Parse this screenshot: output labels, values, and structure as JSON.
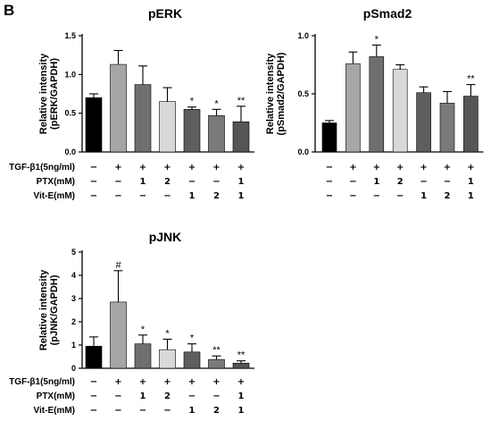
{
  "figure": {
    "panel_letter": "B"
  },
  "condition_table": {
    "row_labels": [
      "TGF-β1(5ng/ml)",
      "PTX(mM)",
      "Vit-E(mM)"
    ],
    "rows": [
      [
        "−",
        "+",
        "+",
        "+",
        "+",
        "+",
        "+"
      ],
      [
        "−",
        "−",
        "1",
        "2",
        "−",
        "−",
        "1"
      ],
      [
        "−",
        "−",
        "−",
        "−",
        "1",
        "2",
        "1"
      ]
    ]
  },
  "colors": {
    "bars": [
      "#000000",
      "#a6a6a6",
      "#6f6f6f",
      "#d9d9d9",
      "#5e5e5e",
      "#7a7a7a",
      "#555555"
    ],
    "axis": "#000000"
  },
  "chart_data": [
    {
      "type": "bar",
      "title": "pERK",
      "ylabel_lines": [
        "Relative intensity",
        "(pERK/GAPDH)"
      ],
      "ylim": [
        0,
        1.5
      ],
      "yticks": [
        0,
        0.5,
        1.0,
        1.5
      ],
      "ytick_labels": [
        "0.0",
        "0.5",
        "1.0",
        "1.5"
      ],
      "values": [
        0.7,
        1.13,
        0.87,
        0.65,
        0.55,
        0.47,
        0.39
      ],
      "errors": [
        0.05,
        0.18,
        0.24,
        0.18,
        0.03,
        0.08,
        0.2
      ],
      "annotations": [
        "",
        "",
        "",
        "",
        "*",
        "*",
        "**"
      ]
    },
    {
      "type": "bar",
      "title": "pSmad2",
      "ylabel_lines": [
        "Relative intensity",
        "(pSmad2/GAPDH)"
      ],
      "ylim": [
        0,
        1.0
      ],
      "yticks": [
        0,
        0.5,
        1.0
      ],
      "ytick_labels": [
        "0.0",
        "0.5",
        "1.0"
      ],
      "values": [
        0.25,
        0.76,
        0.82,
        0.71,
        0.51,
        0.42,
        0.48
      ],
      "errors": [
        0.02,
        0.1,
        0.1,
        0.04,
        0.05,
        0.1,
        0.1
      ],
      "annotations": [
        "",
        "",
        "*",
        "",
        "",
        "",
        "**"
      ]
    },
    {
      "type": "bar",
      "title": "pJNK",
      "ylabel_lines": [
        "Relative intensity",
        "(pJNK/GAPDH)"
      ],
      "ylim": [
        0,
        5
      ],
      "yticks": [
        0,
        1,
        2,
        3,
        4,
        5
      ],
      "ytick_labels": [
        "0",
        "1",
        "2",
        "3",
        "4",
        "5"
      ],
      "values": [
        0.95,
        2.85,
        1.05,
        0.8,
        0.7,
        0.38,
        0.22
      ],
      "errors": [
        0.4,
        1.35,
        0.38,
        0.45,
        0.35,
        0.15,
        0.1
      ],
      "annotations": [
        "",
        "#",
        "*",
        "*",
        "*",
        "**",
        "**"
      ]
    }
  ]
}
